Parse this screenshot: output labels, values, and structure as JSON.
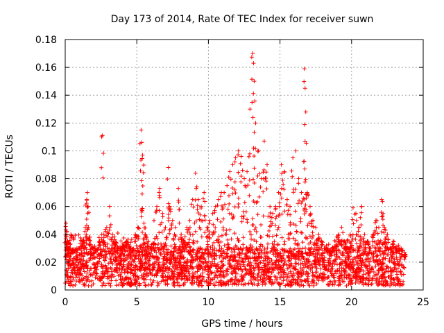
{
  "chart_data": {
    "type": "scatter",
    "title": "Day 173 of 2014, Rate Of TEC Index for receiver suwn",
    "xlabel": "GPS time / hours",
    "ylabel": "ROTI / TECUs",
    "xlim": [
      0,
      25
    ],
    "ylim": [
      0,
      0.18
    ],
    "xticks": [
      0,
      5,
      10,
      15,
      20,
      25
    ],
    "xtick_labels": [
      "0",
      "5",
      "10",
      "15",
      "20",
      "25"
    ],
    "yticks": [
      0,
      0.02,
      0.04,
      0.06,
      0.08,
      0.1,
      0.12,
      0.14,
      0.16,
      0.18
    ],
    "ytick_labels": [
      "0",
      "0.02",
      "0.04",
      "0.06",
      "0.08",
      "0.1",
      "0.12",
      "0.14",
      "0.16",
      "0.18"
    ],
    "grid": true,
    "marker": "plus",
    "color": "#ff0000",
    "series": [
      {
        "name": "ROTI",
        "x": [
          0.05,
          0.1,
          0.15,
          0.2,
          0.3,
          0.4,
          0.6,
          0.8,
          1.0,
          1.2,
          1.4,
          1.5,
          1.55,
          1.6,
          1.7,
          1.9,
          2.1,
          2.4,
          2.6,
          2.7,
          2.9,
          3.1,
          3.3,
          3.5,
          3.7,
          3.9,
          4.1,
          4.3,
          4.5,
          4.7,
          4.9,
          5.1,
          5.3,
          5.35,
          5.4,
          5.5,
          5.6,
          5.8,
          6.0,
          6.2,
          6.4,
          6.6,
          6.8,
          7.0,
          7.2,
          7.3,
          7.5,
          7.7,
          7.9,
          8.1,
          8.3,
          8.5,
          8.7,
          8.9,
          9.1,
          9.3,
          9.5,
          9.7,
          9.9,
          10.1,
          10.3,
          10.5,
          10.7,
          10.9,
          11.1,
          11.3,
          11.5,
          11.7,
          11.9,
          12.1,
          12.3,
          12.5,
          12.7,
          12.9,
          13.1,
          13.15,
          13.2,
          13.3,
          13.5,
          13.7,
          13.9,
          14.1,
          14.3,
          14.5,
          14.7,
          14.9,
          15.1,
          15.3,
          15.5,
          15.7,
          15.9,
          16.1,
          16.3,
          16.5,
          16.7,
          16.75,
          16.8,
          16.9,
          17.1,
          17.3,
          17.5,
          17.7,
          17.9,
          18.1,
          18.3,
          18.5,
          18.7,
          18.9,
          19.1,
          19.3,
          19.5,
          19.7,
          19.9,
          20.1,
          20.3,
          20.5,
          20.7,
          20.9,
          21.1,
          21.3,
          21.5,
          21.7,
          21.9,
          22.1,
          22.2,
          22.3,
          22.5,
          22.7,
          22.9,
          23.1,
          23.3,
          23.5,
          23.7
        ],
        "y": [
          0.048,
          0.042,
          0.035,
          0.025,
          0.03,
          0.04,
          0.028,
          0.022,
          0.03,
          0.035,
          0.045,
          0.065,
          0.07,
          0.06,
          0.038,
          0.03,
          0.028,
          0.035,
          0.111,
          0.04,
          0.045,
          0.06,
          0.04,
          0.035,
          0.03,
          0.028,
          0.032,
          0.035,
          0.03,
          0.028,
          0.04,
          0.045,
          0.115,
          0.106,
          0.097,
          0.048,
          0.04,
          0.035,
          0.03,
          0.05,
          0.06,
          0.073,
          0.055,
          0.045,
          0.088,
          0.06,
          0.05,
          0.045,
          0.073,
          0.04,
          0.035,
          0.045,
          0.05,
          0.065,
          0.084,
          0.065,
          0.06,
          0.07,
          0.045,
          0.05,
          0.055,
          0.06,
          0.065,
          0.07,
          0.07,
          0.075,
          0.085,
          0.09,
          0.095,
          0.1,
          0.096,
          0.08,
          0.085,
          0.13,
          0.17,
          0.163,
          0.15,
          0.12,
          0.1,
          0.08,
          0.107,
          0.09,
          0.06,
          0.055,
          0.06,
          0.07,
          0.09,
          0.085,
          0.065,
          0.06,
          0.095,
          0.1,
          0.08,
          0.07,
          0.159,
          0.145,
          0.128,
          0.07,
          0.06,
          0.05,
          0.045,
          0.04,
          0.035,
          0.03,
          0.028,
          0.025,
          0.03,
          0.035,
          0.04,
          0.045,
          0.035,
          0.03,
          0.04,
          0.059,
          0.055,
          0.045,
          0.06,
          0.04,
          0.035,
          0.03,
          0.04,
          0.05,
          0.045,
          0.065,
          0.055,
          0.045,
          0.04,
          0.03,
          0.035,
          0.03,
          0.028,
          0.025,
          0.022
        ],
        "band_low": 0.003,
        "band_high": 0.03,
        "coverage": "dense continuous scatter, 0 to 23.8 h"
      }
    ]
  }
}
